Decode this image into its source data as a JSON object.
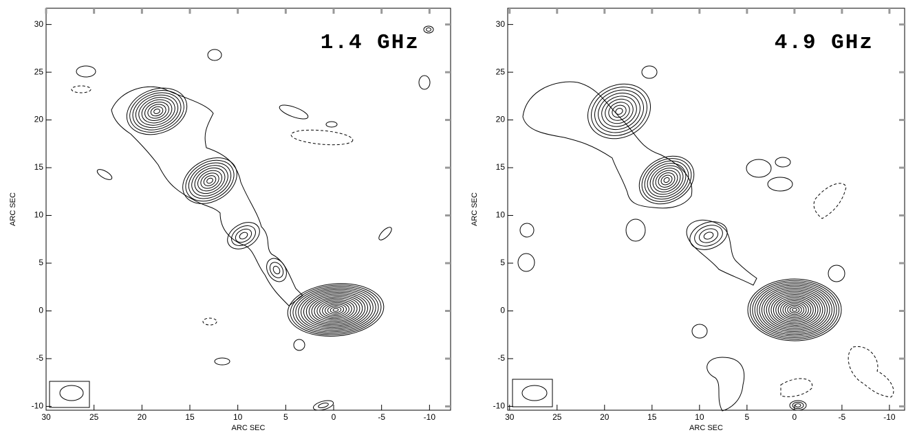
{
  "chart_data": [
    {
      "type": "contour",
      "annotation": "1.4 GHz",
      "xlabel": "ARC SEC",
      "ylabel": "ARC SEC",
      "xlim": [
        30,
        -12.2
      ],
      "ylim": [
        -10.4,
        31.7
      ],
      "xticks": [
        30,
        25,
        20,
        15,
        10,
        5,
        0,
        -5,
        -10
      ],
      "yticks": [
        -10,
        -5,
        0,
        5,
        10,
        15,
        20,
        25,
        30
      ]
    },
    {
      "type": "contour",
      "annotation": "4.9 GHz",
      "xlabel": "ARC SEC",
      "ylabel": "ARC SEC",
      "xlim": [
        30.2,
        -11.6
      ],
      "ylim": [
        -10.4,
        31.7
      ],
      "xticks": [
        30,
        25,
        20,
        15,
        10,
        5,
        0,
        -5,
        -10
      ],
      "yticks": [
        -10,
        -5,
        0,
        5,
        10,
        15,
        20,
        25,
        30
      ]
    }
  ]
}
